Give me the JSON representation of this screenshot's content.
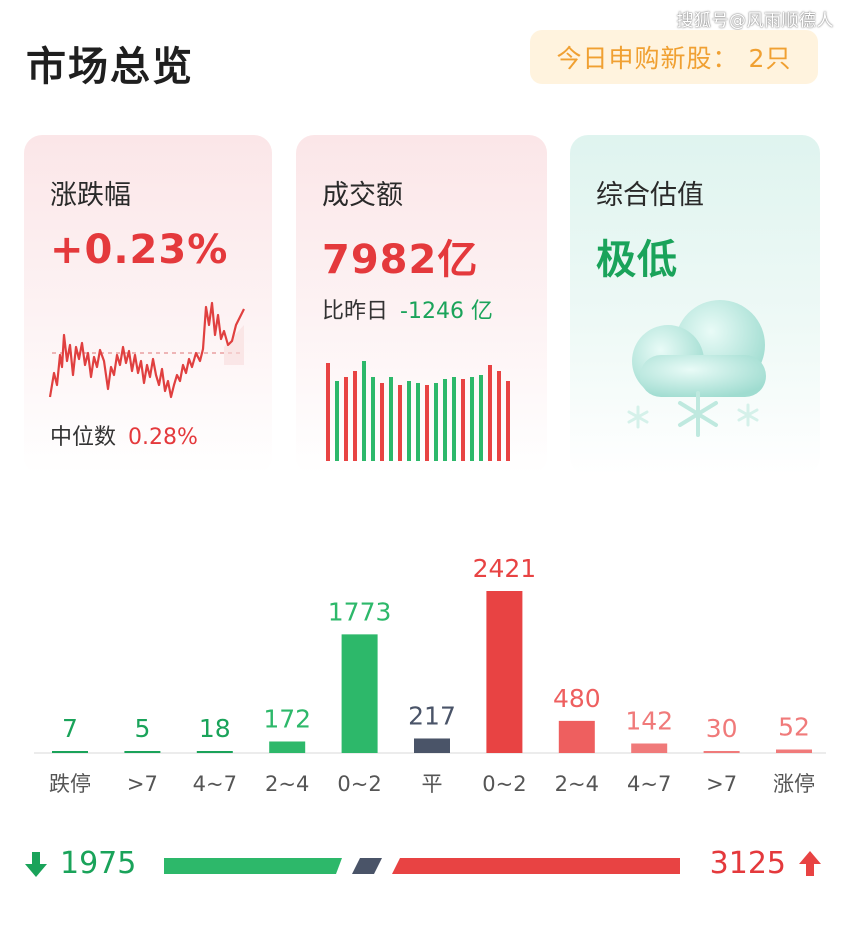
{
  "watermark": "搜狐号@风雨顺德人",
  "header": {
    "title": "市场总览",
    "ipo_label": "今日申购新股：",
    "ipo_value": "2只"
  },
  "cards": {
    "change": {
      "label": "涨跌幅",
      "value": "+0.23%",
      "median_label": "中位数",
      "median_value": "0.28%"
    },
    "volume": {
      "label": "成交额",
      "value": "7982亿",
      "compare_label": "比昨日",
      "compare_value": "-1246 亿"
    },
    "valuation": {
      "label": "综合估值",
      "value": "极低",
      "icon": "snow-cloud-icon"
    }
  },
  "distribution": {
    "categories": [
      "跌停",
      ">7",
      "4~7",
      "2~4",
      "0~2",
      "平",
      "0~2",
      "2~4",
      "4~7",
      ">7",
      "涨停"
    ],
    "values": [
      7,
      5,
      18,
      172,
      1773,
      217,
      2421,
      480,
      142,
      30,
      52
    ],
    "colors": [
      "#1aa35a",
      "#1aa35a",
      "#1aa35a",
      "#2db86a",
      "#2db86a",
      "#4a5468",
      "#e84343",
      "#ee5f5f",
      "#f07a7a",
      "#f07a7a",
      "#f07a7a"
    ]
  },
  "flow": {
    "down_value": "1975",
    "up_value": "3125",
    "down_icon": "arrow-down-icon",
    "up_icon": "arrow-up-icon"
  },
  "colors": {
    "red": "#e4393c",
    "green": "#1aa35a",
    "flat": "#4a5468",
    "badge_bg": "#fff3de",
    "badge_text": "#f0a032"
  }
}
